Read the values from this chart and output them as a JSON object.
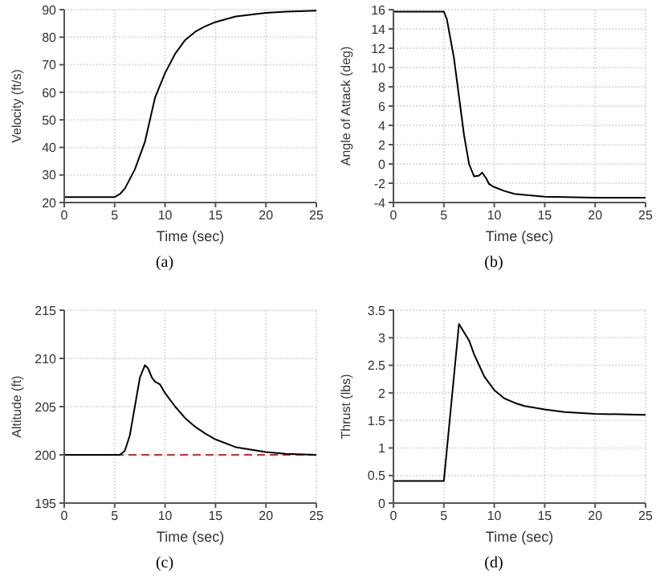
{
  "chart_data": [
    {
      "type": "line",
      "xlabel": "Time (sec)",
      "ylabel": "Velocity (ft/s)",
      "annotations": [
        "(a)"
      ],
      "xlim": [
        0,
        25
      ],
      "ylim": [
        20,
        90
      ],
      "xticks": [
        0,
        5,
        10,
        15,
        20,
        25
      ],
      "yticks": [
        20,
        30,
        40,
        50,
        60,
        70,
        80,
        90
      ],
      "grid": true,
      "series": [
        {
          "color": "#000000",
          "x": [
            0,
            5,
            5.5,
            6,
            7,
            8,
            8.5,
            9,
            10,
            11,
            12,
            13,
            14,
            15,
            17,
            20,
            22,
            25
          ],
          "values": [
            22,
            22,
            23,
            25,
            32,
            42,
            50,
            58,
            67,
            74,
            79,
            82,
            84,
            85.5,
            87.5,
            88.8,
            89.3,
            89.6
          ]
        }
      ]
    },
    {
      "type": "line",
      "xlabel": "Time (sec)",
      "ylabel": "Angle of Attack (deg)",
      "annotations": [
        "(b)"
      ],
      "xlim": [
        0,
        25
      ],
      "ylim": [
        -4,
        16
      ],
      "xticks": [
        0,
        5,
        10,
        15,
        20,
        25
      ],
      "yticks": [
        -4,
        -2,
        0,
        2,
        4,
        6,
        8,
        10,
        12,
        14,
        16
      ],
      "grid": true,
      "series": [
        {
          "color": "#000000",
          "x": [
            0,
            5,
            5.3,
            6,
            6.5,
            7,
            7.5,
            8,
            8.5,
            8.8,
            9.2,
            9.5,
            10,
            11,
            12,
            13,
            15,
            20,
            25
          ],
          "values": [
            15.8,
            15.8,
            15,
            11,
            7,
            3,
            0,
            -1.3,
            -1.2,
            -0.9,
            -1.5,
            -2.1,
            -2.4,
            -2.8,
            -3.1,
            -3.2,
            -3.4,
            -3.5,
            -3.5
          ]
        }
      ]
    },
    {
      "type": "line",
      "xlabel": "Time (sec)",
      "ylabel": "Altitude (ft)",
      "annotations": [
        "(c)"
      ],
      "xlim": [
        0,
        25
      ],
      "ylim": [
        195,
        215
      ],
      "xticks": [
        0,
        5,
        10,
        15,
        20,
        25
      ],
      "yticks": [
        195,
        200,
        205,
        210,
        215
      ],
      "grid": true,
      "ref_lines": [
        {
          "axis": "y",
          "value": 200,
          "color": "#d62728",
          "line_style": "dashed"
        }
      ],
      "series": [
        {
          "color": "#000000",
          "x": [
            0,
            5.5,
            6,
            6.5,
            7,
            7.5,
            8,
            8.3,
            8.7,
            9,
            9.5,
            10,
            11,
            12,
            13,
            14,
            15,
            17,
            20,
            22,
            25
          ],
          "values": [
            200,
            200,
            200.4,
            202,
            205,
            208,
            209.3,
            209,
            208,
            207.6,
            207.3,
            206.4,
            205,
            203.8,
            202.9,
            202.2,
            201.6,
            200.8,
            200.3,
            200.1,
            200
          ]
        }
      ]
    },
    {
      "type": "line",
      "xlabel": "Time (sec)",
      "ylabel": "Thrust (lbs)",
      "annotations": [
        "(d)"
      ],
      "xlim": [
        0,
        25
      ],
      "ylim": [
        0,
        3.5
      ],
      "xticks": [
        0,
        5,
        10,
        15,
        20,
        25
      ],
      "yticks": [
        0,
        0.5,
        1,
        1.5,
        2,
        2.5,
        3,
        3.5
      ],
      "grid": true,
      "series": [
        {
          "color": "#000000",
          "x": [
            0,
            5,
            6.5,
            7,
            7.5,
            8,
            9,
            10,
            11,
            12,
            13,
            15,
            17,
            20,
            25
          ],
          "values": [
            0.4,
            0.4,
            3.25,
            3.1,
            2.95,
            2.7,
            2.3,
            2.05,
            1.9,
            1.82,
            1.76,
            1.7,
            1.65,
            1.62,
            1.6
          ]
        }
      ]
    }
  ]
}
